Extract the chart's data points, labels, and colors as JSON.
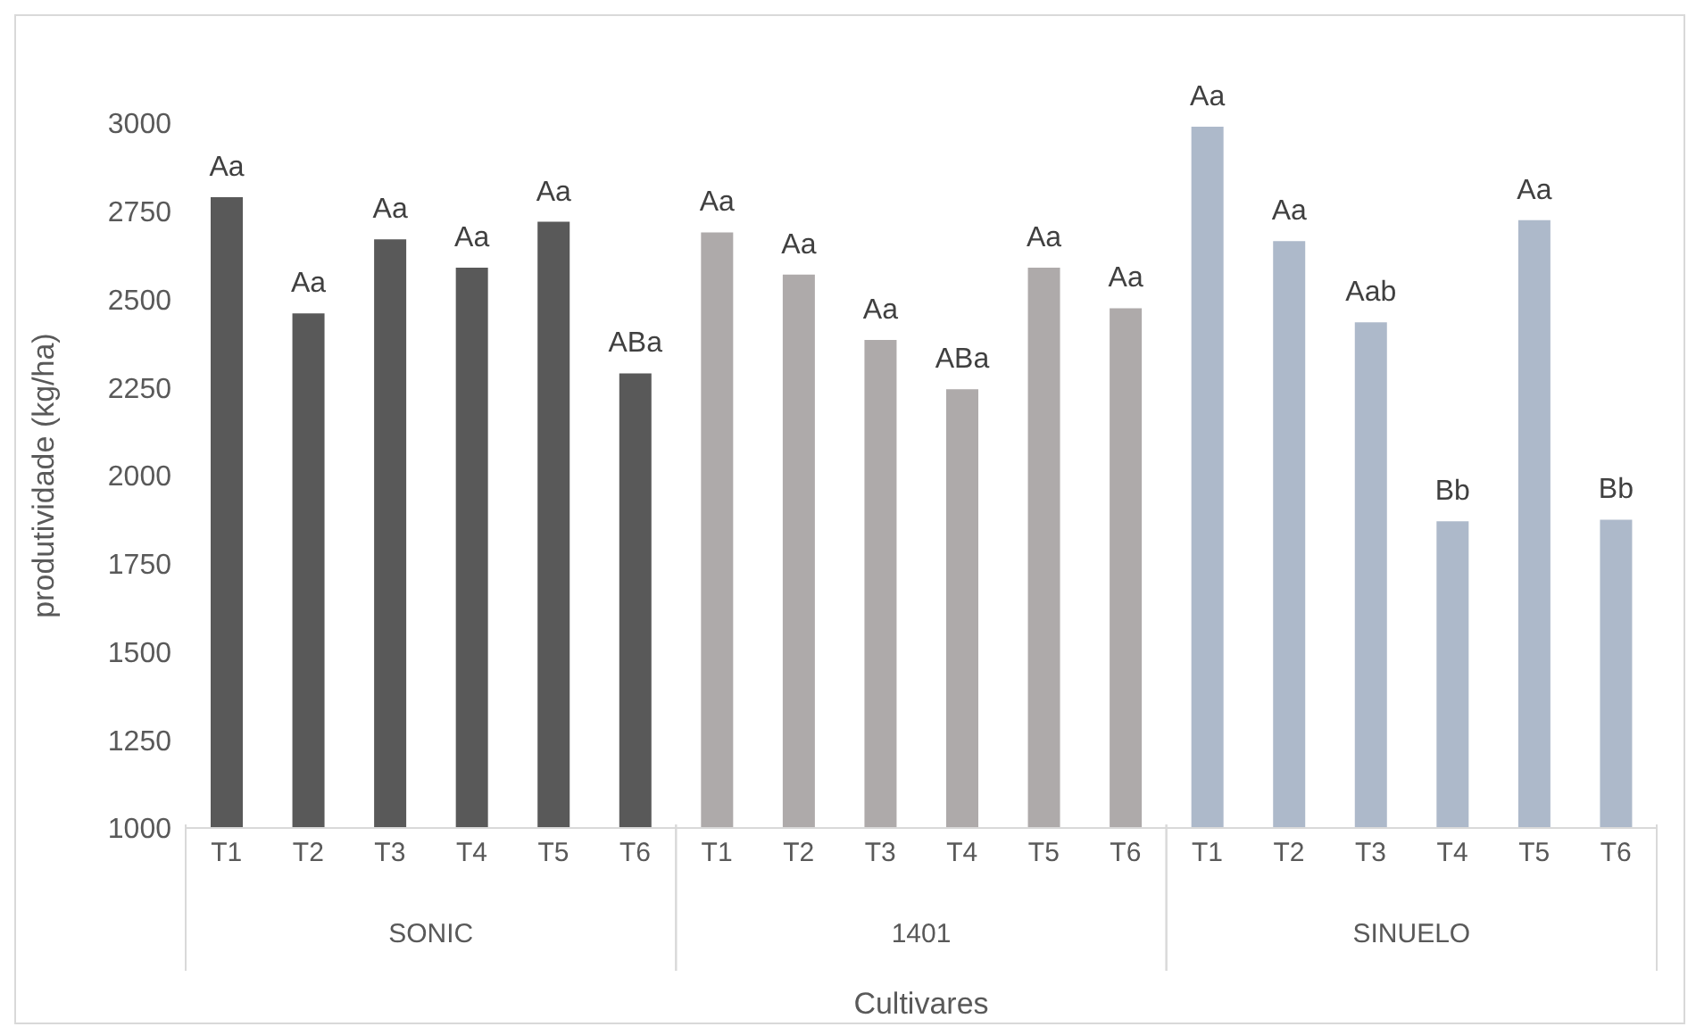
{
  "chart_data": {
    "type": "bar",
    "xlabel": "Cultivares",
    "ylabel": "produtividade (kg/ha)",
    "categories": [
      "T1",
      "T2",
      "T3",
      "T4",
      "T5",
      "T6",
      "T1",
      "T2",
      "T3",
      "T4",
      "T5",
      "T6",
      "T1",
      "T2",
      "T3",
      "T4",
      "T5",
      "T6"
    ],
    "series": [
      {
        "color": "#595959",
        "values": [
          2790,
          2460,
          2670,
          2590,
          2720,
          2290,
          null,
          null,
          null,
          null,
          null,
          null,
          null,
          null,
          null,
          null,
          null,
          null
        ],
        "value_labels": [
          "Aa",
          "Aa",
          "Aa",
          "Aa",
          "Aa",
          "ABa",
          null,
          null,
          null,
          null,
          null,
          null,
          null,
          null,
          null,
          null,
          null,
          null
        ]
      },
      {
        "color": "#aeaaaa",
        "values": [
          null,
          null,
          null,
          null,
          null,
          null,
          2690,
          2570,
          2385,
          2245,
          2590,
          2475,
          null,
          null,
          null,
          null,
          null,
          null
        ],
        "value_labels": [
          null,
          null,
          null,
          null,
          null,
          null,
          "Aa",
          "Aa",
          "Aa",
          "ABa",
          "Aa",
          "Aa",
          null,
          null,
          null,
          null,
          null,
          null
        ]
      },
      {
        "color": "#adb9ca",
        "values": [
          null,
          null,
          null,
          null,
          null,
          null,
          null,
          null,
          null,
          null,
          null,
          null,
          2990,
          2665,
          2435,
          1870,
          2725,
          1875
        ],
        "value_labels": [
          null,
          null,
          null,
          null,
          null,
          null,
          null,
          null,
          null,
          null,
          null,
          null,
          "Aa",
          "Aa",
          "Aab",
          "Bb",
          "Aa",
          "Bb"
        ]
      }
    ],
    "ylim": [
      1000,
      3000
    ],
    "yticks": [
      1000,
      1250,
      1500,
      1750,
      2000,
      2250,
      2500,
      2750,
      3000
    ],
    "annotations": [
      "SONIC",
      "1401",
      "SINUELO"
    ],
    "grid": false,
    "legend": false
  }
}
